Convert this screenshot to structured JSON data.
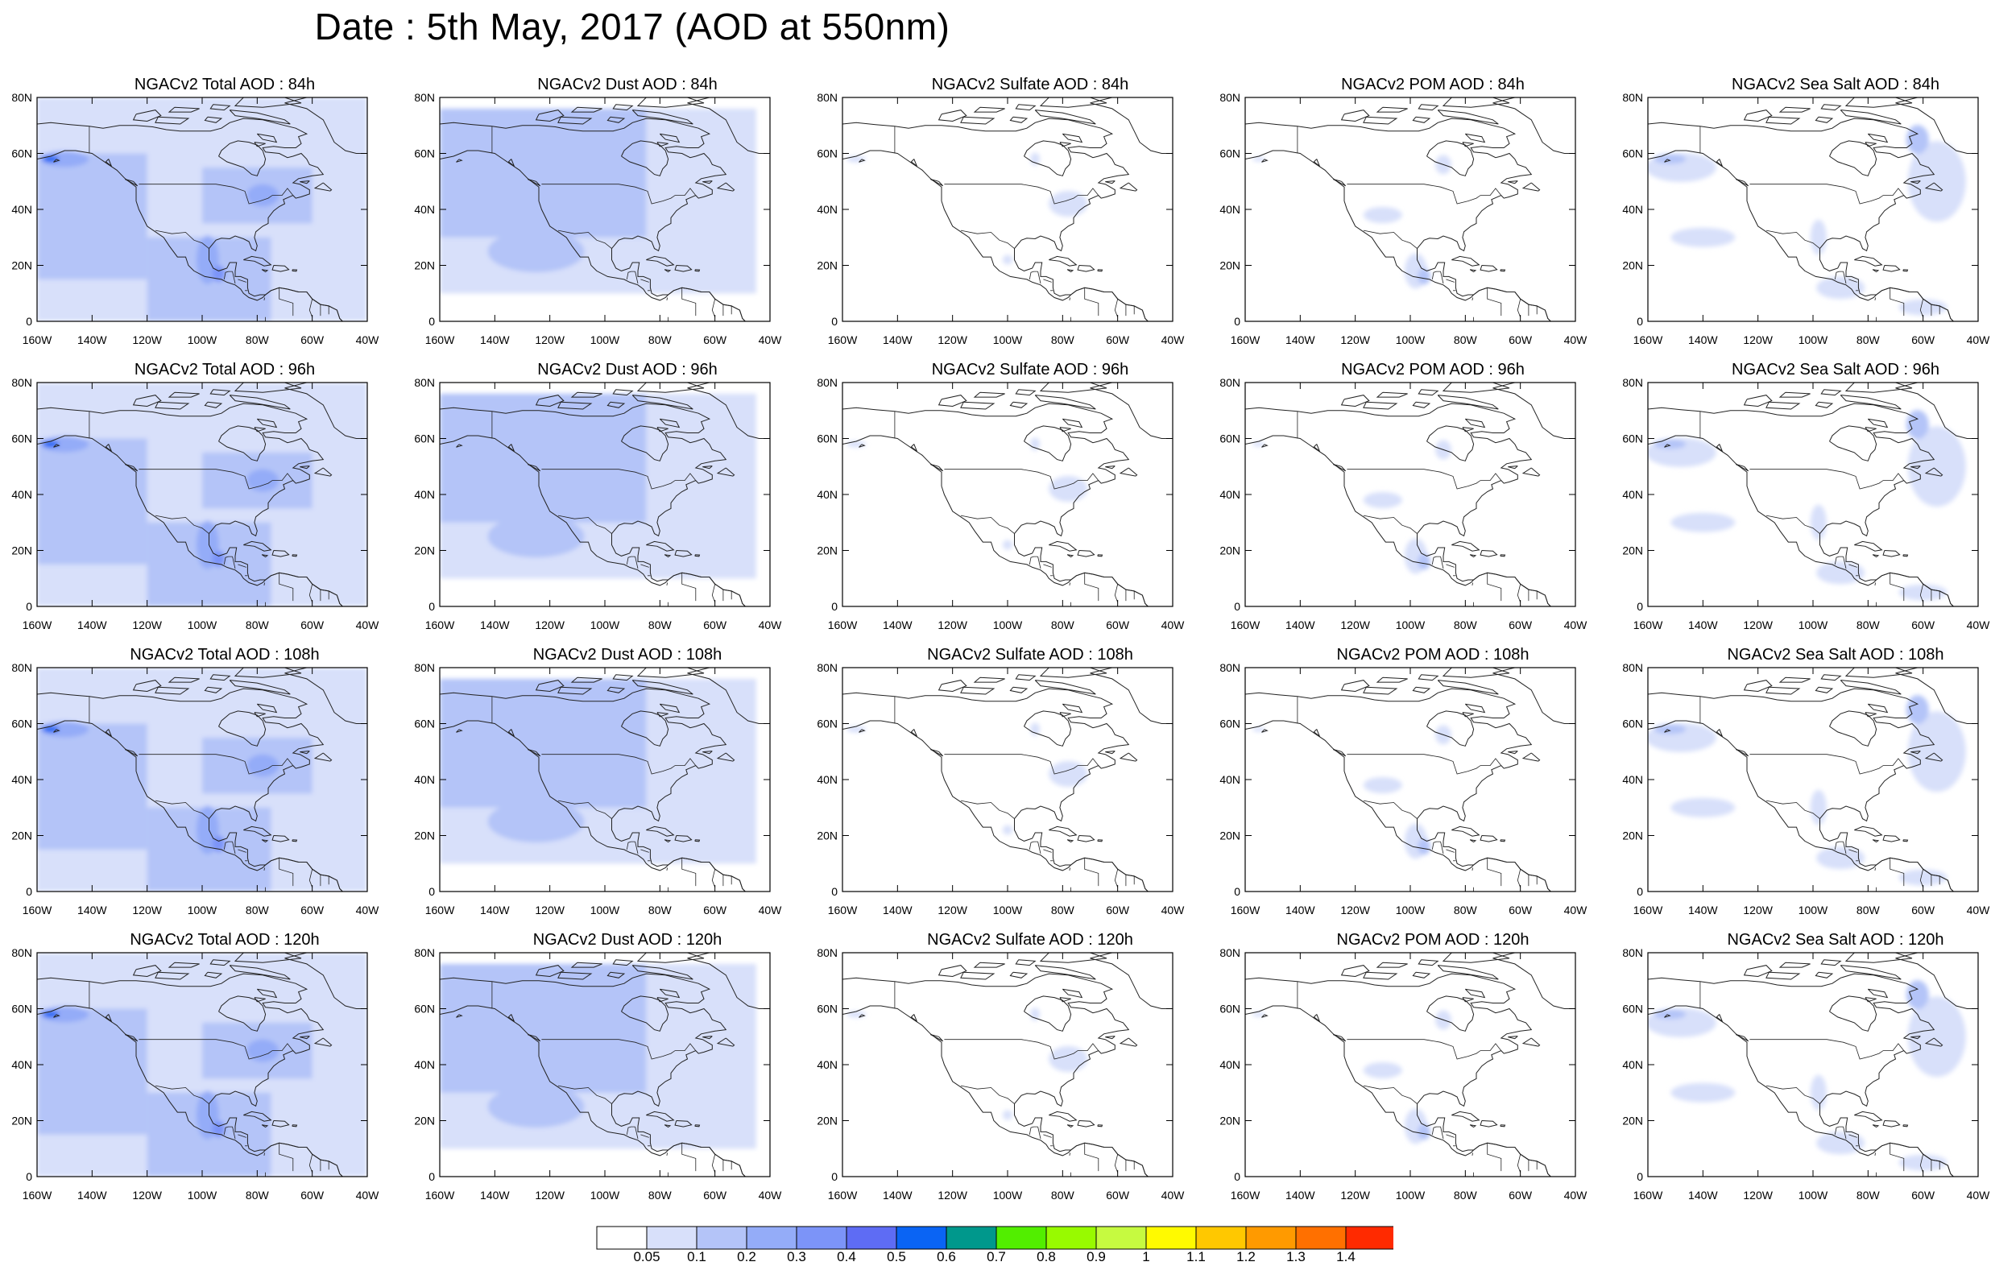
{
  "title": "Date : 5th May, 2017 (AOD at 550nm)",
  "y_tick_labels": [
    "0",
    "20N",
    "40N",
    "60N",
    "80N"
  ],
  "x_tick_labels": [
    "160W",
    "140W",
    "120W",
    "100W",
    "80W",
    "60W",
    "40W"
  ],
  "panels": [
    {
      "title": "NGACv2 Total AOD : 84h",
      "species": "total"
    },
    {
      "title": "NGACv2 Dust AOD : 84h",
      "species": "dust"
    },
    {
      "title": "NGACv2 Sulfate AOD : 84h",
      "species": "sulfate"
    },
    {
      "title": "NGACv2 POM AOD : 84h",
      "species": "pom"
    },
    {
      "title": "NGACv2 Sea Salt AOD : 84h",
      "species": "seasalt"
    },
    {
      "title": "NGACv2 Total AOD : 96h",
      "species": "total"
    },
    {
      "title": "NGACv2 Dust AOD : 96h",
      "species": "dust"
    },
    {
      "title": "NGACv2 Sulfate AOD : 96h",
      "species": "sulfate"
    },
    {
      "title": "NGACv2 POM AOD : 96h",
      "species": "pom"
    },
    {
      "title": "NGACv2 Sea Salt AOD : 96h",
      "species": "seasalt"
    },
    {
      "title": "NGACv2 Total AOD : 108h",
      "species": "total"
    },
    {
      "title": "NGACv2 Dust AOD : 108h",
      "species": "dust"
    },
    {
      "title": "NGACv2 Sulfate AOD : 108h",
      "species": "sulfate"
    },
    {
      "title": "NGACv2 POM AOD : 108h",
      "species": "pom"
    },
    {
      "title": "NGACv2 Sea Salt AOD : 108h",
      "species": "seasalt"
    },
    {
      "title": "NGACv2 Total AOD : 120h",
      "species": "total"
    },
    {
      "title": "NGACv2 Dust AOD : 120h",
      "species": "dust"
    },
    {
      "title": "NGACv2 Sulfate AOD : 120h",
      "species": "sulfate"
    },
    {
      "title": "NGACv2 POM AOD : 120h",
      "species": "pom"
    },
    {
      "title": "NGACv2 Sea Salt  AOD : 120h",
      "species": "seasalt"
    }
  ],
  "colorbar": {
    "labels": [
      "0.05",
      "0.1",
      "0.2",
      "0.3",
      "0.4",
      "0.5",
      "0.6",
      "0.7",
      "0.8",
      "0.9",
      "1",
      "1.1",
      "1.2",
      "1.3",
      "1.4"
    ],
    "colors": [
      "#ffffff",
      "#d8e0fa",
      "#b4c4f8",
      "#94acf8",
      "#7c94f8",
      "#5e6cf4",
      "#0a64f4",
      "#00988c",
      "#52ee00",
      "#98fa00",
      "#c6fa40",
      "#fffa00",
      "#ffc800",
      "#ff9a00",
      "#ff7000",
      "#ff2a00"
    ]
  }
}
